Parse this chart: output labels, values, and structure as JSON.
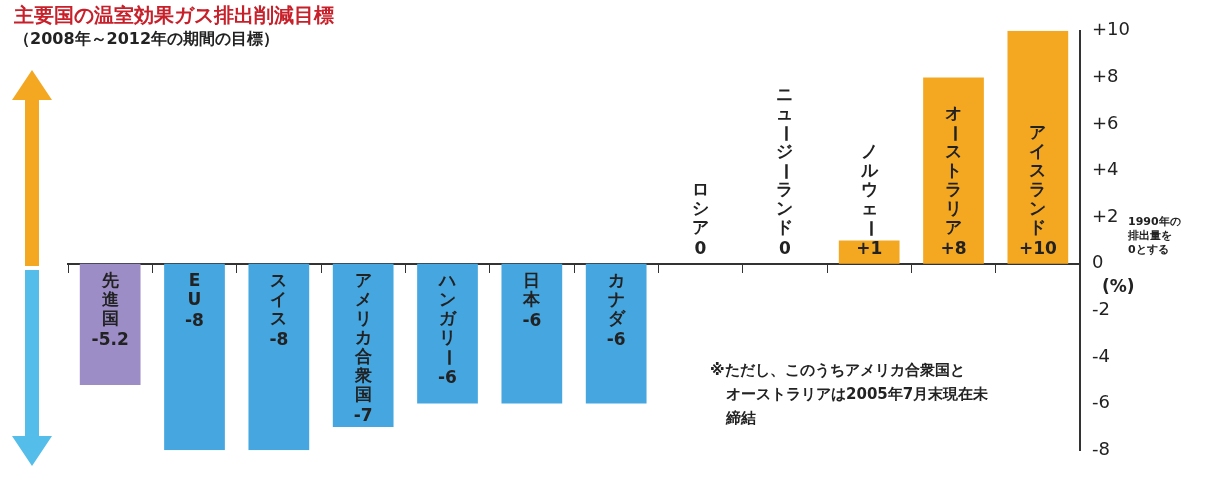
{
  "chart_data": {
    "type": "bar",
    "title": "主要国の温室効果ガス排出削減目標",
    "subtitle": "（2008年～2012年の期間の目標）",
    "ylabel": "(%)",
    "categories": [
      "先進国",
      "EU",
      "スイス",
      "アメリカ合衆国",
      "ハンガリー",
      "日本",
      "カナダ",
      "ロシア",
      "ニュージーランド",
      "ノルウェー",
      "オーストラリア",
      "アイスランド"
    ],
    "values": [
      -5.2,
      -8,
      -8,
      -7,
      -6,
      -6,
      -6,
      0,
      0,
      1,
      8,
      10
    ],
    "value_labels": [
      "-5.2",
      "-8",
      "-8",
      "-7",
      "-6",
      "-6",
      "-6",
      "0",
      "0",
      "+1",
      "+8",
      "+10"
    ],
    "colors": [
      "#9c8dc6",
      "#45a6e0",
      "#45a6e0",
      "#45a6e0",
      "#45a6e0",
      "#45a6e0",
      "#45a6e0",
      "#45a6e0",
      "#45a6e0",
      "#f4a822",
      "#f4a822",
      "#f4a822"
    ],
    "ylim": [
      -8,
      10
    ],
    "yticks": [
      {
        "value": 10,
        "label": "+10"
      },
      {
        "value": 8,
        "label": "+8"
      },
      {
        "value": 6,
        "label": "+6"
      },
      {
        "value": 4,
        "label": "+4"
      },
      {
        "value": 2,
        "label": "+2"
      },
      0,
      -2,
      -4,
      -6,
      -8
    ],
    "grid": false,
    "legend": false,
    "annotations": [
      "1990年の排出量を0とする",
      "※ただし、このうちアメリカ合衆国とオーストラリアは2005年7月末現在未締結"
    ]
  }
}
